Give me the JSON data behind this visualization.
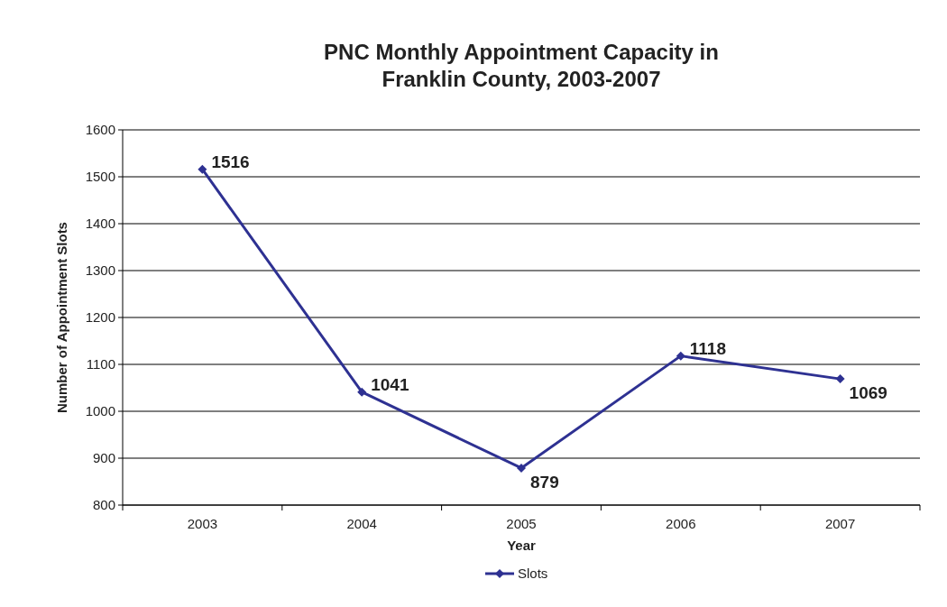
{
  "chart_data": {
    "type": "line",
    "title": "PNC Monthly Appointment Capacity in Franklin County, 2003-2007",
    "xlabel": "Year",
    "ylabel": "Number of Appointment Slots",
    "categories": [
      "2003",
      "2004",
      "2005",
      "2006",
      "2007"
    ],
    "series": [
      {
        "name": "Slots",
        "color": "#2e3192",
        "values": [
          1516,
          1041,
          879,
          1118,
          1069
        ]
      }
    ],
    "ylim": [
      800,
      1600
    ],
    "yticks": [
      800,
      900,
      1000,
      1100,
      1200,
      1300,
      1400,
      1500,
      1600
    ],
    "grid": "y",
    "legend": "bottom",
    "marker": "diamond",
    "line_style": "solid",
    "data_labels": true
  }
}
